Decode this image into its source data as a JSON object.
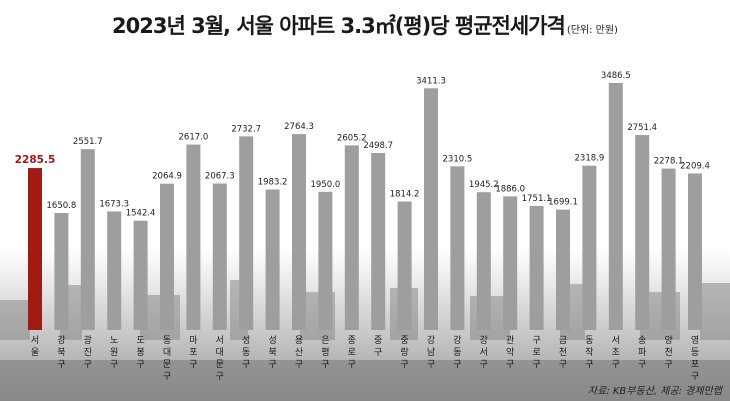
{
  "title": "2023년 3월, 서울 아파트 3.3㎡(평)당 평균전세가격",
  "unit_note": "(단위: 만원)",
  "source": "자료: KB부동산, 제공: 경제만랩",
  "colors": {
    "highlight": "#a11a14",
    "bar": "#9e9e9e",
    "highlight_label": "#a11a14",
    "label": "#222222"
  },
  "chart_data": {
    "type": "bar",
    "title": "2023년 3월, 서울 아파트 3.3㎡(평)당 평균전세가격",
    "unit": "(단위: 만원)",
    "categories": [
      "서울",
      "강북구",
      "광진구",
      "노원구",
      "도봉구",
      "동대문구",
      "마포구",
      "서대문구",
      "성동구",
      "성북구",
      "용산구",
      "은평구",
      "종로구",
      "중구",
      "중랑구",
      "강남구",
      "강동구",
      "강서구",
      "관악구",
      "구로구",
      "금천구",
      "동작구",
      "서초구",
      "송파구",
      "양천구",
      "영등포구"
    ],
    "values": [
      2285.5,
      1650.8,
      2551.7,
      1673.3,
      1542.4,
      2064.9,
      2617.0,
      2067.3,
      2732.7,
      1983.2,
      2764.3,
      1950.0,
      2605.2,
      2498.7,
      1814.2,
      3411.3,
      2310.5,
      1945.2,
      1886.0,
      1751.1,
      1699.1,
      2318.9,
      3486.5,
      2751.4,
      2278.1,
      2209.4
    ],
    "value_labels": [
      "2285.5",
      "1650.8",
      "2551.7",
      "1673.3",
      "1542.4",
      "2064.9",
      "2617.0",
      "2067.3",
      "2732.7",
      "1983.2",
      "2764.3",
      "1950.0",
      "2605.2",
      "2498.7",
      "1814.2",
      "3411.3",
      "2310.5",
      "1945.2",
      "1886.0",
      "1751.1",
      "1699.1",
      "2318.9",
      "3486.5",
      "2751.4",
      "2278.1",
      "2209.4"
    ],
    "highlight_index": 0,
    "ylim": [
      0,
      3500
    ],
    "grid": false,
    "legend": "none"
  }
}
